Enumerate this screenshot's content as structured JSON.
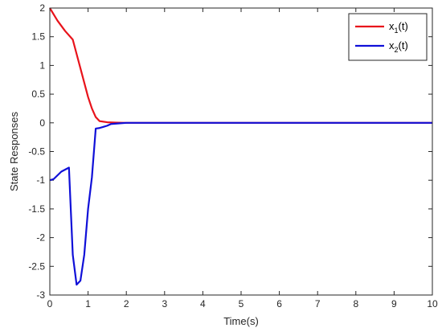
{
  "chart_data": {
    "type": "line",
    "title": "",
    "xlabel": "Time(s)",
    "ylabel": "State Responses",
    "xlim": [
      0,
      10
    ],
    "ylim": [
      -3,
      2
    ],
    "xticks": [
      0,
      1,
      2,
      3,
      4,
      5,
      6,
      7,
      8,
      9,
      10
    ],
    "yticks": [
      -3,
      -2.5,
      -2,
      -1.5,
      -1,
      -0.5,
      0,
      0.5,
      1,
      1.5,
      2
    ],
    "xtick_labels": [
      "0",
      "1",
      "2",
      "3",
      "4",
      "5",
      "6",
      "7",
      "8",
      "9",
      "10"
    ],
    "ytick_labels": [
      "-3",
      "-2.5",
      "-2",
      "-1.5",
      "-1",
      "-0.5",
      "0",
      "0.5",
      "1",
      "1.5",
      "2"
    ],
    "grid": false,
    "legend_position": "top-right",
    "series": [
      {
        "name": "x_1(t)",
        "legend_main": "x",
        "legend_sub": "1",
        "legend_tail": "(t)",
        "color": "#e8131b",
        "x": [
          0,
          0.2,
          0.4,
          0.6,
          0.7,
          0.8,
          0.9,
          1.0,
          1.1,
          1.2,
          1.3,
          1.5,
          1.7,
          2.0,
          2.5,
          3,
          4,
          5,
          6,
          7,
          8,
          9,
          10
        ],
        "y": [
          2.0,
          1.78,
          1.6,
          1.45,
          1.2,
          0.95,
          0.7,
          0.45,
          0.25,
          0.1,
          0.03,
          0.01,
          0.005,
          0.0,
          0.0,
          0.0,
          0.0,
          0.0,
          0.0,
          0.0,
          0.0,
          0.0,
          0.0
        ]
      },
      {
        "name": "x_2(t)",
        "legend_main": "x",
        "legend_sub": "2",
        "legend_tail": "(t)",
        "color": "#1010d8",
        "x": [
          0,
          0.1,
          0.3,
          0.5,
          0.6,
          0.7,
          0.8,
          0.9,
          1.0,
          1.1,
          1.2,
          1.3,
          1.5,
          1.6,
          1.8,
          2.0,
          2.5,
          3,
          4,
          5,
          6,
          7,
          8,
          9,
          10
        ],
        "y": [
          -1.0,
          -0.98,
          -0.85,
          -0.78,
          -2.3,
          -2.82,
          -2.75,
          -2.3,
          -1.5,
          -0.95,
          -0.1,
          -0.09,
          -0.05,
          -0.02,
          -0.01,
          0.0,
          0.0,
          0.0,
          0.0,
          0.0,
          0.0,
          0.0,
          0.0,
          0.0,
          0.0
        ]
      }
    ]
  }
}
